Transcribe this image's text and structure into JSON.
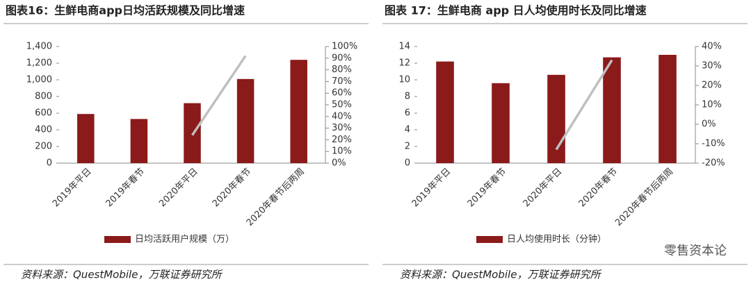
{
  "chart_data": [
    {
      "type": "bar",
      "title": "图表16：生鲜电商app日均活跃规模及同比增速",
      "categories": [
        "2019年平日",
        "2019年春节",
        "2020年平日",
        "2020年春节",
        "2020年春节后两周"
      ],
      "series": [
        {
          "name": "日均活跃用户规模（万）",
          "type": "bar",
          "color": "#8b1a1a",
          "values": [
            590,
            530,
            720,
            1010,
            1240
          ]
        },
        {
          "type": "line",
          "axis": "y2",
          "color": "#bfbfbf",
          "values": [
            null,
            null,
            24,
            92,
            null
          ]
        }
      ],
      "ylim": [
        0,
        1400
      ],
      "yticks": [
        0,
        200,
        400,
        600,
        800,
        {
          "value": 1000,
          "label": "1,000"
        },
        {
          "value": 1200,
          "label": "1,200"
        },
        {
          "value": 1400,
          "label": "1,400"
        }
      ],
      "y2lim": [
        0,
        100
      ],
      "y2ticks": [
        {
          "value": 0,
          "label": "0%"
        },
        {
          "value": 10,
          "label": "10%"
        },
        {
          "value": 20,
          "label": "20%"
        },
        {
          "value": 30,
          "label": "30%"
        },
        {
          "value": 40,
          "label": "40%"
        },
        {
          "value": 50,
          "label": "50%"
        },
        {
          "value": 60,
          "label": "60%"
        },
        {
          "value": 70,
          "label": "70%"
        },
        {
          "value": 80,
          "label": "80%"
        },
        {
          "value": 90,
          "label": "90%"
        },
        {
          "value": 100,
          "label": "100%"
        }
      ],
      "source": "资料来源：QuestMobile，万联证券研究所"
    },
    {
      "type": "bar",
      "title": "图表 17：生鲜电商 app 日人均使用时长及同比增速",
      "categories": [
        "2019年平日",
        "2019年春节",
        "2020年平日",
        "2020年春节",
        "2020年春节后两周"
      ],
      "series": [
        {
          "name": "日人均使用时长（分钟）",
          "type": "bar",
          "color": "#8b1a1a",
          "values": [
            12.2,
            9.6,
            10.6,
            12.7,
            13.0
          ]
        },
        {
          "type": "line",
          "axis": "y2",
          "color": "#bfbfbf",
          "values": [
            null,
            null,
            -13,
            33,
            null
          ]
        }
      ],
      "ylim": [
        0,
        14
      ],
      "yticks": [
        0,
        2,
        4,
        6,
        8,
        10,
        12,
        14
      ],
      "y2lim": [
        -20,
        40
      ],
      "y2ticks": [
        {
          "value": -20,
          "label": "-20%"
        },
        {
          "value": -10,
          "label": "-10%"
        },
        {
          "value": 0,
          "label": "0%"
        },
        {
          "value": 10,
          "label": "10%"
        },
        {
          "value": 20,
          "label": "20%"
        },
        {
          "value": 30,
          "label": "30%"
        },
        {
          "value": 40,
          "label": "40%"
        }
      ],
      "source": "资料来源：QuestMobile，万联证券研究所"
    }
  ],
  "watermark": "零售资本论"
}
